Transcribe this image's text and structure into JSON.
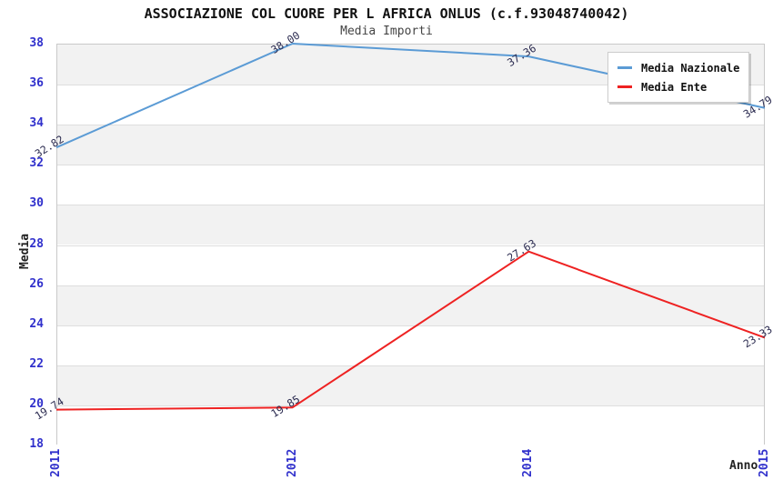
{
  "chart_data": {
    "type": "line",
    "title": "ASSOCIAZIONE COL CUORE PER L AFRICA ONLUS (c.f.93048740042)",
    "subtitle": "Media Importi",
    "xlabel": "Anno",
    "ylabel": "Media",
    "categories": [
      "2011",
      "2012",
      "2014",
      "2015"
    ],
    "series": [
      {
        "name": "Media Nazionale",
        "color": "#5b9bd5",
        "values": [
          32.82,
          38.0,
          37.36,
          34.79
        ],
        "labels": [
          "32.82",
          "38.00",
          "37.36",
          "34.79"
        ]
      },
      {
        "name": "Media Ente",
        "color": "#ee2222",
        "values": [
          19.74,
          19.85,
          27.63,
          23.33
        ],
        "labels": [
          "19.74",
          "19.85",
          "27.63",
          "23.33"
        ]
      }
    ],
    "ylim": [
      18,
      38
    ],
    "yticks": [
      18,
      20,
      22,
      24,
      26,
      28,
      30,
      32,
      34,
      36,
      38
    ],
    "ytick_step": 2,
    "grid": true,
    "legend_position": "top-right",
    "axis_tick_color": "#3030cc",
    "value_label_color": "#2b2b50",
    "band_colors": [
      "#f2f2f2",
      "#ffffff"
    ]
  }
}
